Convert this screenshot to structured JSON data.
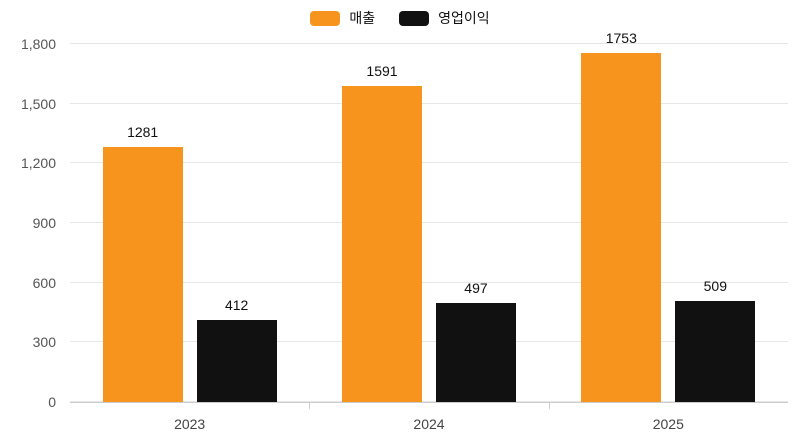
{
  "chart_data": {
    "type": "bar",
    "categories": [
      "2023",
      "2024",
      "2025"
    ],
    "series": [
      {
        "name": "매출",
        "color": "#F7941E",
        "values": [
          1281,
          1591,
          1753
        ]
      },
      {
        "name": "영업이익",
        "color": "#111111",
        "values": [
          412,
          497,
          509
        ]
      }
    ],
    "title": "",
    "xlabel": "",
    "ylabel": "",
    "ylim": [
      0,
      1800
    ],
    "yticks": [
      0,
      300,
      600,
      900,
      1200,
      1500,
      1800
    ],
    "ytick_labels": [
      "0",
      "300",
      "600",
      "900",
      "1,200",
      "1,500",
      "1,800"
    ],
    "grid": true,
    "legend_position": "top",
    "background_color": "#ffffff",
    "gridline_color": "#e7e7e7",
    "axis_color": "#cccccc"
  }
}
